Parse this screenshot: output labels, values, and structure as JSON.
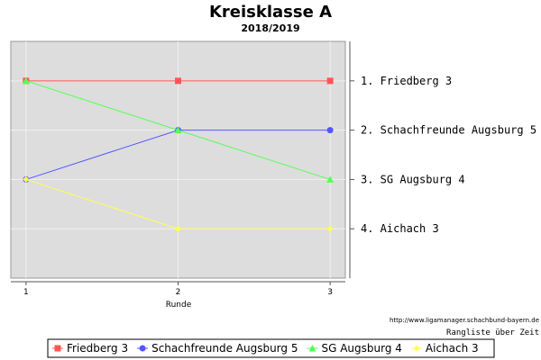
{
  "chart_data": {
    "type": "line",
    "title": "Kreisklasse A",
    "subtitle": "2018/2019",
    "xlabel": "Runde",
    "x": [
      1,
      2,
      3
    ],
    "xlim": [
      0.9,
      3.1
    ],
    "ylim": [
      0.2,
      5.0
    ],
    "y_inverted": true,
    "grid": true,
    "legend_position": "bottom",
    "rank_labels": [
      "1. Friedberg 3",
      "2. Schachfreunde Augsburg 5",
      "3. SG Augsburg 4",
      "4. Aichach 3"
    ],
    "series": [
      {
        "name": "Friedberg 3",
        "values": [
          1,
          1,
          1
        ],
        "color": "#ff5555",
        "marker": "square"
      },
      {
        "name": "Schachfreunde Augsburg 5",
        "values": [
          3,
          2,
          2
        ],
        "color": "#5555ff",
        "marker": "circle"
      },
      {
        "name": "SG Augsburg 4",
        "values": [
          1,
          2,
          3
        ],
        "color": "#55ff55",
        "marker": "triangle"
      },
      {
        "name": "Aichach 3",
        "values": [
          3,
          4,
          4
        ],
        "color": "#ffff55",
        "marker": "diamond"
      }
    ]
  },
  "source_url": "http://www.ligamanager.schachbund-bayern.de",
  "caption": "Rangliste über Zeit",
  "colors": {
    "plot_background": "#dddddd",
    "grid": "#f0f0f0"
  }
}
